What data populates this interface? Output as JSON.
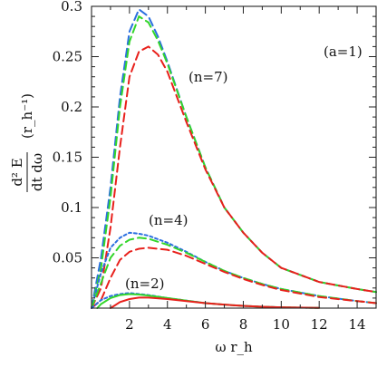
{
  "chart_data": {
    "type": "line",
    "ylabel_numerator": "d² E",
    "ylabel_denominator": "dt dω",
    "ylabel_units": "(r_h⁻¹)",
    "xlabel": "ω r_h",
    "xlim": [
      0,
      15
    ],
    "ylim": [
      0,
      0.3
    ],
    "xticks": [
      2,
      4,
      6,
      8,
      10,
      12,
      14
    ],
    "yticks": [
      0.05,
      0.1,
      0.15,
      0.2,
      0.25,
      0.3
    ],
    "annotations": [
      "(a=1)",
      "(n=7)",
      "(n=4)",
      "(n=2)"
    ],
    "colors": {
      "red": "#e8201b",
      "green": "#33d62a",
      "blue": "#2b6fe0"
    },
    "series": [
      {
        "group": "n=7",
        "color": "blue",
        "style": "dashed",
        "x": [
          0,
          0.5,
          1,
          1.5,
          2,
          2.5,
          3,
          3.5,
          4,
          5,
          6,
          7,
          8,
          9,
          10,
          12,
          14,
          15
        ],
        "y": [
          0,
          0.05,
          0.12,
          0.21,
          0.275,
          0.297,
          0.29,
          0.27,
          0.245,
          0.19,
          0.14,
          0.1,
          0.075,
          0.055,
          0.04,
          0.026,
          0.019,
          0.016
        ]
      },
      {
        "group": "n=7",
        "color": "green",
        "style": "dashed",
        "x": [
          0,
          0.5,
          1,
          1.5,
          2,
          2.5,
          3,
          3.5,
          4,
          5,
          6,
          7,
          8,
          9,
          10,
          12,
          14,
          15
        ],
        "y": [
          0,
          0.04,
          0.11,
          0.2,
          0.265,
          0.29,
          0.284,
          0.266,
          0.243,
          0.19,
          0.14,
          0.1,
          0.075,
          0.055,
          0.04,
          0.026,
          0.019,
          0.016
        ]
      },
      {
        "group": "n=7",
        "color": "red",
        "style": "dashed",
        "x": [
          0,
          0.5,
          1,
          1.5,
          2,
          2.5,
          3,
          3.5,
          4,
          5,
          6,
          7,
          8,
          9,
          10,
          12,
          14,
          15
        ],
        "y": [
          0,
          0.02,
          0.08,
          0.16,
          0.23,
          0.255,
          0.26,
          0.252,
          0.235,
          0.185,
          0.138,
          0.1,
          0.075,
          0.055,
          0.04,
          0.026,
          0.019,
          0.016
        ]
      },
      {
        "group": "n=4",
        "color": "blue",
        "style": "dotted",
        "x": [
          0,
          0.5,
          1,
          1.5,
          2,
          2.5,
          3,
          4,
          5,
          6,
          7,
          8,
          9,
          10,
          12,
          14,
          15
        ],
        "y": [
          0,
          0.035,
          0.06,
          0.07,
          0.075,
          0.074,
          0.072,
          0.065,
          0.056,
          0.046,
          0.037,
          0.03,
          0.024,
          0.019,
          0.012,
          0.007,
          0.005
        ]
      },
      {
        "group": "n=4",
        "color": "green",
        "style": "dashed",
        "x": [
          0,
          0.5,
          1,
          1.5,
          2,
          2.5,
          3,
          4,
          5,
          6,
          7,
          8,
          9,
          10,
          12,
          14,
          15
        ],
        "y": [
          0,
          0.025,
          0.05,
          0.062,
          0.068,
          0.07,
          0.069,
          0.063,
          0.055,
          0.046,
          0.037,
          0.03,
          0.024,
          0.019,
          0.012,
          0.007,
          0.005
        ]
      },
      {
        "group": "n=4",
        "color": "red",
        "style": "dashed",
        "x": [
          0,
          0.5,
          1,
          1.5,
          2,
          2.5,
          3,
          4,
          5,
          6,
          7,
          8,
          9,
          10,
          12,
          14,
          15
        ],
        "y": [
          0,
          0.008,
          0.03,
          0.048,
          0.056,
          0.059,
          0.06,
          0.058,
          0.052,
          0.044,
          0.036,
          0.029,
          0.023,
          0.018,
          0.011,
          0.007,
          0.005
        ]
      },
      {
        "group": "n=2",
        "color": "blue",
        "style": "dotted",
        "x": [
          0,
          0.5,
          1,
          1.5,
          2,
          2.5,
          3,
          4,
          5,
          6,
          7,
          8,
          9,
          10,
          12
        ],
        "y": [
          0,
          0.008,
          0.012,
          0.014,
          0.015,
          0.014,
          0.013,
          0.01,
          0.0075,
          0.005,
          0.0035,
          0.0022,
          0.0014,
          0.0008,
          0.0002
        ]
      },
      {
        "group": "n=2",
        "color": "green",
        "style": "solid",
        "x": [
          0.3,
          0.5,
          1,
          1.5,
          2,
          2.5,
          3,
          4,
          5,
          6,
          7,
          8,
          9,
          10,
          12
        ],
        "y": [
          0,
          0.004,
          0.01,
          0.013,
          0.014,
          0.0135,
          0.0125,
          0.01,
          0.0075,
          0.005,
          0.0035,
          0.0022,
          0.0014,
          0.0008,
          0.0002
        ]
      },
      {
        "group": "n=2",
        "color": "red",
        "style": "solid",
        "x": [
          1,
          1.5,
          2,
          2.5,
          3,
          4,
          5,
          6,
          7,
          8,
          9,
          10,
          12
        ],
        "y": [
          0,
          0.006,
          0.009,
          0.0105,
          0.0105,
          0.009,
          0.007,
          0.005,
          0.0035,
          0.0022,
          0.0014,
          0.0008,
          0.0002
        ]
      }
    ]
  }
}
